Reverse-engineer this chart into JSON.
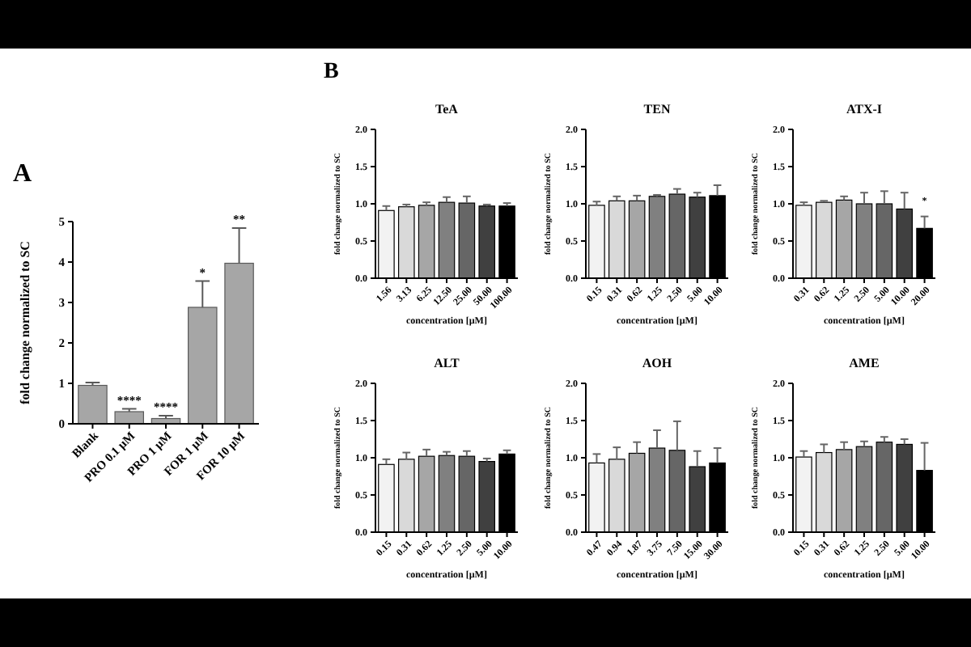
{
  "chart_data": [
    {
      "type": "bar",
      "title": "A",
      "ylabel": "fold change normalized to SC",
      "categories": [
        "Blank",
        "PRO 0.1 µM",
        "PRO 1 µM",
        "FOR 1 µM",
        "FOR 10 µM"
      ],
      "values": [
        0.95,
        0.3,
        0.13,
        2.88,
        3.97
      ],
      "errors": [
        [
          0.95,
          1.02
        ],
        [
          0.3,
          0.37
        ],
        [
          0.13,
          0.2
        ],
        [
          2.88,
          3.53
        ],
        [
          3.97,
          4.84
        ]
      ],
      "color": "#a6a6a6",
      "ylim": [
        0,
        5
      ],
      "yticks": [
        0,
        1,
        2,
        3,
        4,
        5
      ],
      "annotations": [
        {
          "text": "****",
          "x": "PRO 0.1 µM",
          "y": 0.37
        },
        {
          "text": "****",
          "x": "PRO 1 µM",
          "y": 0.2
        },
        {
          "text": "*",
          "x": "FOR 1 µM",
          "y": 3.53
        },
        {
          "text": "**",
          "x": "FOR 10 µM",
          "y": 4.84
        }
      ]
    },
    {
      "type": "bar",
      "title": "TeA",
      "xlabel": "concentration [µM]",
      "ylabel": "fold change normalized to SC",
      "categories": [
        "1.56",
        "3.13",
        "6.25",
        "12.50",
        "25.00",
        "50.00",
        "100.00"
      ],
      "values": [
        0.91,
        0.96,
        0.98,
        1.02,
        1.01,
        0.97,
        0.97
      ],
      "errors": [
        [
          0.91,
          0.97
        ],
        [
          0.96,
          0.99
        ],
        [
          0.98,
          1.02
        ],
        [
          1.02,
          1.09
        ],
        [
          1.01,
          1.1
        ],
        [
          0.97,
          0.99
        ],
        [
          0.97,
          1.01
        ]
      ],
      "colors": [
        "#f2f2f2",
        "#d9d9d9",
        "#a6a6a6",
        "#808080",
        "#666666",
        "#404040",
        "#000000"
      ],
      "ylim": [
        0,
        2
      ],
      "yticks": [
        {
          "value": 0,
          "label": "0.0"
        },
        {
          "value": 0.5,
          "label": "0.5"
        },
        {
          "value": 1,
          "label": "1.0"
        },
        {
          "value": 1.5,
          "label": "1.5"
        },
        {
          "value": 2,
          "label": "2.0"
        }
      ],
      "annotations": [
        "B"
      ]
    },
    {
      "type": "bar",
      "title": "TEN",
      "xlabel": "concentration [µM]",
      "ylabel": "fold change normalized to SC",
      "categories": [
        "0.15",
        "0.31",
        "0.62",
        "1.25",
        "2.50",
        "5.00",
        "10.00"
      ],
      "values": [
        0.98,
        1.04,
        1.04,
        1.1,
        1.13,
        1.09,
        1.11
      ],
      "errors": [
        [
          0.98,
          1.03
        ],
        [
          1.04,
          1.1
        ],
        [
          1.04,
          1.11
        ],
        [
          1.1,
          1.12
        ],
        [
          1.13,
          1.2
        ],
        [
          1.09,
          1.15
        ],
        [
          1.11,
          1.25
        ]
      ],
      "colors": [
        "#f2f2f2",
        "#d9d9d9",
        "#a6a6a6",
        "#808080",
        "#666666",
        "#404040",
        "#000000"
      ],
      "ylim": [
        0,
        2
      ],
      "yticks": [
        {
          "value": 0,
          "label": "0.0"
        },
        {
          "value": 0.5,
          "label": "0.5"
        },
        {
          "value": 1,
          "label": "1.0"
        },
        {
          "value": 1.5,
          "label": "1.5"
        },
        {
          "value": 2,
          "label": "2.0"
        }
      ]
    },
    {
      "type": "bar",
      "title": "ATX-I",
      "xlabel": "concentration [µM]",
      "ylabel": "fold change normalized to SC",
      "categories": [
        "0.31",
        "0.62",
        "1.25",
        "2.50",
        "5.00",
        "10.00",
        "20.00"
      ],
      "values": [
        0.98,
        1.02,
        1.05,
        1.0,
        1.0,
        0.93,
        0.67
      ],
      "errors": [
        [
          0.98,
          1.02
        ],
        [
          1.02,
          1.04
        ],
        [
          1.05,
          1.1
        ],
        [
          1.0,
          1.15
        ],
        [
          1.0,
          1.17
        ],
        [
          0.93,
          1.15
        ],
        [
          0.67,
          0.83
        ]
      ],
      "colors": [
        "#f2f2f2",
        "#d9d9d9",
        "#a6a6a6",
        "#808080",
        "#666666",
        "#404040",
        "#000000"
      ],
      "ylim": [
        0,
        2
      ],
      "yticks": [
        {
          "value": 0,
          "label": "0.0"
        },
        {
          "value": 0.5,
          "label": "0.5"
        },
        {
          "value": 1,
          "label": "1.0"
        },
        {
          "value": 1.5,
          "label": "1.5"
        },
        {
          "value": 2,
          "label": "2.0"
        }
      ],
      "annotations": [
        {
          "text": "*",
          "x": "20.00",
          "y": 0.93
        }
      ]
    },
    {
      "type": "bar",
      "title": "ALT",
      "xlabel": "concentration [µM]",
      "ylabel": "fold change normalized to SC",
      "categories": [
        "0.15",
        "0.31",
        "0.62",
        "1.25",
        "2.50",
        "5.00",
        "10.00"
      ],
      "values": [
        0.91,
        0.98,
        1.02,
        1.03,
        1.02,
        0.95,
        1.05
      ],
      "errors": [
        [
          0.91,
          0.98
        ],
        [
          0.98,
          1.07
        ],
        [
          1.02,
          1.11
        ],
        [
          1.03,
          1.08
        ],
        [
          1.02,
          1.09
        ],
        [
          0.95,
          0.99
        ],
        [
          1.05,
          1.1
        ]
      ],
      "colors": [
        "#f2f2f2",
        "#d9d9d9",
        "#a6a6a6",
        "#808080",
        "#666666",
        "#404040",
        "#000000"
      ],
      "ylim": [
        0,
        2
      ],
      "yticks": [
        {
          "value": 0,
          "label": "0.0"
        },
        {
          "value": 0.5,
          "label": "0.5"
        },
        {
          "value": 1,
          "label": "1.0"
        },
        {
          "value": 1.5,
          "label": "1.5"
        },
        {
          "value": 2,
          "label": "2.0"
        }
      ]
    },
    {
      "type": "bar",
      "title": "AOH",
      "xlabel": "concentration [µM]",
      "ylabel": "fold change normalized to SC",
      "categories": [
        "0.47",
        "0.94",
        "1.87",
        "3.75",
        "7.50",
        "15.00",
        "30.00"
      ],
      "values": [
        0.93,
        0.98,
        1.06,
        1.13,
        1.1,
        0.88,
        0.93
      ],
      "errors": [
        [
          0.93,
          1.05
        ],
        [
          0.98,
          1.14
        ],
        [
          1.06,
          1.21
        ],
        [
          1.13,
          1.37
        ],
        [
          1.1,
          1.49
        ],
        [
          0.88,
          1.09
        ],
        [
          0.93,
          1.13
        ]
      ],
      "colors": [
        "#f2f2f2",
        "#d9d9d9",
        "#a6a6a6",
        "#808080",
        "#666666",
        "#404040",
        "#000000"
      ],
      "ylim": [
        0,
        2
      ],
      "yticks": [
        {
          "value": 0,
          "label": "0.0"
        },
        {
          "value": 0.5,
          "label": "0.5"
        },
        {
          "value": 1,
          "label": "1.0"
        },
        {
          "value": 1.5,
          "label": "1.5"
        },
        {
          "value": 2,
          "label": "2.0"
        }
      ]
    },
    {
      "type": "bar",
      "title": "AME",
      "xlabel": "concentration [µM]",
      "ylabel": "fold change normalized to SC",
      "categories": [
        "0.15",
        "0.31",
        "0.62",
        "1.25",
        "2.50",
        "5.00",
        "10.00"
      ],
      "values": [
        1.01,
        1.07,
        1.11,
        1.15,
        1.21,
        1.18,
        0.83
      ],
      "errors": [
        [
          1.01,
          1.09
        ],
        [
          1.07,
          1.18
        ],
        [
          1.11,
          1.21
        ],
        [
          1.15,
          1.22
        ],
        [
          1.21,
          1.28
        ],
        [
          1.18,
          1.25
        ],
        [
          0.83,
          1.2
        ]
      ],
      "colors": [
        "#f2f2f2",
        "#d9d9d9",
        "#a6a6a6",
        "#808080",
        "#666666",
        "#404040",
        "#000000"
      ],
      "ylim": [
        0,
        2
      ],
      "yticks": [
        {
          "value": 0,
          "label": "0.0"
        },
        {
          "value": 0.5,
          "label": "0.5"
        },
        {
          "value": 1,
          "label": "1.0"
        },
        {
          "value": 1.5,
          "label": "1.5"
        },
        {
          "value": 2,
          "label": "2.0"
        }
      ]
    }
  ]
}
